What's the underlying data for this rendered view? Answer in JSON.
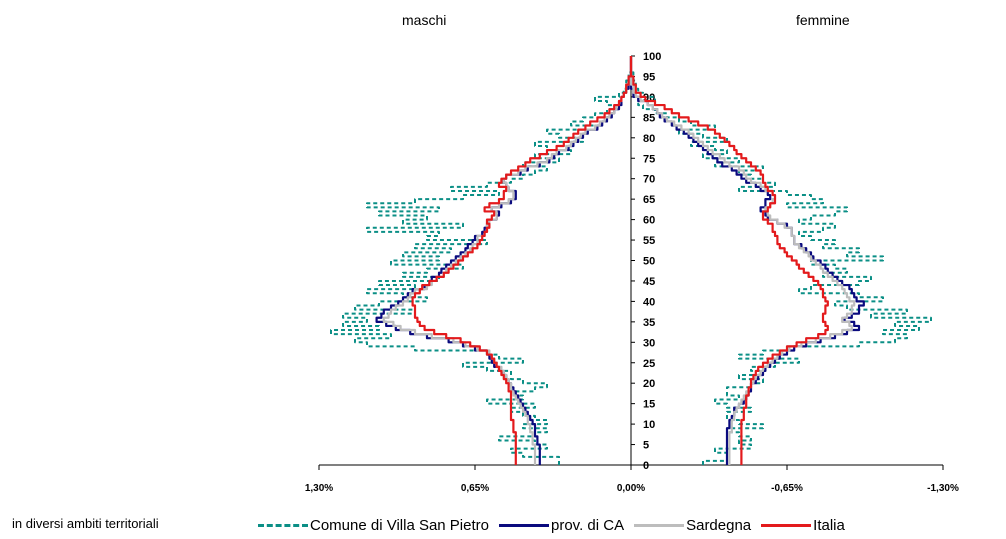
{
  "chart_data": {
    "type": "population-pyramid",
    "headers": {
      "left": "maschi",
      "right": "femmine"
    },
    "note": "in diversi ambiti territoriali",
    "y_ticks": [
      0,
      5,
      10,
      15,
      20,
      25,
      30,
      35,
      40,
      45,
      50,
      55,
      60,
      65,
      70,
      75,
      80,
      85,
      90,
      95,
      100
    ],
    "x_ticks": [
      {
        "value": -1.3,
        "label": "1,30%"
      },
      {
        "value": -0.65,
        "label": "0,65%"
      },
      {
        "value": 0.0,
        "label": "0,00%"
      },
      {
        "value": 0.65,
        "label": "-0,65%"
      },
      {
        "value": 1.3,
        "label": "-1,30%"
      }
    ],
    "xlim": [
      -1.3,
      1.3
    ],
    "ylim": [
      0,
      100
    ],
    "series": [
      {
        "name": "Comune di Villa San Pietro",
        "color": "#0b8f86",
        "style": "dashed",
        "male": [
          0.3,
          0.3,
          0.45,
          0.5,
          0.35,
          0.4,
          0.55,
          0.4,
          0.35,
          0.45,
          0.35,
          0.4,
          0.45,
          0.5,
          0.4,
          0.6,
          0.45,
          0.5,
          0.4,
          0.35,
          0.45,
          0.5,
          0.5,
          0.6,
          0.7,
          0.45,
          0.55,
          0.6,
          0.9,
          1.1,
          1.15,
          1.0,
          1.25,
          1.05,
          1.2,
          1.1,
          1.2,
          0.9,
          1.15,
          1.05,
          0.85,
          0.95,
          1.1,
          0.9,
          1.05,
          0.8,
          0.95,
          0.85,
          0.7,
          1.0,
          0.8,
          0.95,
          0.75,
          0.9,
          0.6,
          0.85,
          0.8,
          1.1,
          0.7,
          0.95,
          0.85,
          1.05,
          0.8,
          1.1,
          0.9,
          0.7,
          0.55,
          0.75,
          0.6,
          0.5,
          0.45,
          0.4,
          0.35,
          0.45,
          0.3,
          0.4,
          0.25,
          0.35,
          0.4,
          0.2,
          0.3,
          0.35,
          0.15,
          0.25,
          0.2,
          0.15,
          0.1,
          0.05,
          0.1,
          0.15,
          0.05,
          0.03,
          0.02,
          0.02,
          0.01,
          0.01,
          0.0,
          0.0,
          0.0,
          0.0,
          0.0
        ],
        "female": [
          0.3,
          0.4,
          0.4,
          0.35,
          0.5,
          0.45,
          0.5,
          0.45,
          0.4,
          0.55,
          0.45,
          0.4,
          0.4,
          0.5,
          0.4,
          0.35,
          0.45,
          0.4,
          0.4,
          0.5,
          0.55,
          0.45,
          0.55,
          0.5,
          0.6,
          0.7,
          0.45,
          0.55,
          0.65,
          0.95,
          1.1,
          1.15,
          1.05,
          1.2,
          1.1,
          1.25,
          1.0,
          1.15,
          0.9,
          0.85,
          1.05,
          0.95,
          0.7,
          0.75,
          0.95,
          1.0,
          0.8,
          0.9,
          0.85,
          0.75,
          1.05,
          0.9,
          0.95,
          0.8,
          0.85,
          0.75,
          0.7,
          0.8,
          0.85,
          0.7,
          0.75,
          0.85,
          0.9,
          0.65,
          0.8,
          0.75,
          0.65,
          0.45,
          0.6,
          0.55,
          0.5,
          0.45,
          0.55,
          0.35,
          0.45,
          0.3,
          0.4,
          0.35,
          0.25,
          0.4,
          0.3,
          0.2,
          0.35,
          0.25,
          0.2,
          0.15,
          0.1,
          0.05,
          0.03,
          0.1,
          0.05,
          0.03,
          0.02,
          0.02,
          0.01,
          0.01,
          0.0,
          0.0,
          0.0,
          0.0,
          0.0
        ]
      },
      {
        "name": "prov. di CA",
        "color": "#0a0a7e",
        "style": "solid",
        "male": [
          0.38,
          0.38,
          0.38,
          0.38,
          0.38,
          0.39,
          0.39,
          0.4,
          0.4,
          0.4,
          0.41,
          0.42,
          0.43,
          0.44,
          0.45,
          0.46,
          0.47,
          0.48,
          0.49,
          0.5,
          0.51,
          0.52,
          0.53,
          0.55,
          0.57,
          0.58,
          0.59,
          0.6,
          0.65,
          0.7,
          0.76,
          0.85,
          0.92,
          0.98,
          1.02,
          1.06,
          1.04,
          1.03,
          1.0,
          0.97,
          0.95,
          0.93,
          0.91,
          0.86,
          0.84,
          0.83,
          0.8,
          0.79,
          0.77,
          0.75,
          0.73,
          0.71,
          0.69,
          0.68,
          0.66,
          0.65,
          0.62,
          0.61,
          0.6,
          0.59,
          0.56,
          0.55,
          0.58,
          0.54,
          0.5,
          0.48,
          0.48,
          0.51,
          0.52,
          0.53,
          0.52,
          0.46,
          0.43,
          0.38,
          0.34,
          0.32,
          0.3,
          0.26,
          0.24,
          0.22,
          0.2,
          0.18,
          0.14,
          0.12,
          0.1,
          0.08,
          0.07,
          0.05,
          0.04,
          0.04,
          0.03,
          0.02,
          0.01,
          0.01,
          0.01,
          0.0,
          0.0,
          0.0,
          0.0,
          0.0,
          0.0
        ],
        "female": [
          0.4,
          0.4,
          0.4,
          0.4,
          0.4,
          0.4,
          0.4,
          0.4,
          0.4,
          0.41,
          0.41,
          0.42,
          0.43,
          0.43,
          0.45,
          0.47,
          0.48,
          0.49,
          0.5,
          0.5,
          0.52,
          0.53,
          0.55,
          0.56,
          0.58,
          0.6,
          0.62,
          0.65,
          0.68,
          0.73,
          0.79,
          0.85,
          0.9,
          0.95,
          0.93,
          0.89,
          0.92,
          0.95,
          0.95,
          0.97,
          0.94,
          0.93,
          0.92,
          0.91,
          0.88,
          0.86,
          0.84,
          0.82,
          0.81,
          0.79,
          0.76,
          0.75,
          0.73,
          0.71,
          0.68,
          0.68,
          0.67,
          0.67,
          0.65,
          0.61,
          0.57,
          0.56,
          0.54,
          0.56,
          0.56,
          0.58,
          0.57,
          0.54,
          0.52,
          0.48,
          0.46,
          0.44,
          0.42,
          0.38,
          0.36,
          0.34,
          0.32,
          0.3,
          0.28,
          0.26,
          0.24,
          0.22,
          0.19,
          0.17,
          0.14,
          0.12,
          0.11,
          0.09,
          0.07,
          0.03,
          0.01,
          0.01,
          0.0,
          0.0,
          0.0,
          0.0,
          0.0,
          0.0,
          0.0,
          0.0,
          0.0
        ]
      },
      {
        "name": "Sardegna",
        "color": "#bdbdbd",
        "style": "solid",
        "male": [
          0.4,
          0.4,
          0.4,
          0.4,
          0.4,
          0.41,
          0.41,
          0.41,
          0.42,
          0.42,
          0.43,
          0.43,
          0.44,
          0.45,
          0.46,
          0.47,
          0.48,
          0.49,
          0.5,
          0.5,
          0.51,
          0.52,
          0.53,
          0.54,
          0.56,
          0.57,
          0.58,
          0.59,
          0.64,
          0.69,
          0.74,
          0.83,
          0.9,
          0.96,
          0.99,
          1.03,
          1.01,
          1.0,
          0.98,
          0.95,
          0.93,
          0.92,
          0.9,
          0.85,
          0.83,
          0.81,
          0.78,
          0.77,
          0.75,
          0.73,
          0.71,
          0.69,
          0.67,
          0.66,
          0.64,
          0.64,
          0.61,
          0.6,
          0.6,
          0.59,
          0.56,
          0.56,
          0.58,
          0.55,
          0.51,
          0.49,
          0.49,
          0.51,
          0.52,
          0.53,
          0.52,
          0.47,
          0.44,
          0.39,
          0.35,
          0.33,
          0.31,
          0.27,
          0.25,
          0.23,
          0.21,
          0.19,
          0.15,
          0.13,
          0.11,
          0.09,
          0.07,
          0.06,
          0.05,
          0.04,
          0.03,
          0.02,
          0.02,
          0.01,
          0.01,
          0.0,
          0.0,
          0.0,
          0.0,
          0.0,
          0.0
        ],
        "female": [
          0.41,
          0.41,
          0.41,
          0.41,
          0.41,
          0.41,
          0.41,
          0.41,
          0.42,
          0.42,
          0.42,
          0.43,
          0.43,
          0.44,
          0.45,
          0.46,
          0.47,
          0.48,
          0.49,
          0.5,
          0.51,
          0.52,
          0.54,
          0.55,
          0.57,
          0.59,
          0.61,
          0.63,
          0.66,
          0.71,
          0.77,
          0.83,
          0.88,
          0.92,
          0.91,
          0.88,
          0.9,
          0.92,
          0.92,
          0.93,
          0.91,
          0.9,
          0.89,
          0.88,
          0.86,
          0.84,
          0.82,
          0.8,
          0.79,
          0.77,
          0.75,
          0.74,
          0.72,
          0.7,
          0.68,
          0.68,
          0.67,
          0.67,
          0.64,
          0.61,
          0.58,
          0.57,
          0.56,
          0.58,
          0.59,
          0.6,
          0.59,
          0.56,
          0.54,
          0.5,
          0.48,
          0.47,
          0.45,
          0.41,
          0.39,
          0.37,
          0.34,
          0.32,
          0.3,
          0.28,
          0.26,
          0.24,
          0.21,
          0.18,
          0.15,
          0.13,
          0.11,
          0.09,
          0.07,
          0.04,
          0.02,
          0.01,
          0.01,
          0.0,
          0.0,
          0.0,
          0.0,
          0.0,
          0.0,
          0.0,
          0.0
        ]
      },
      {
        "name": "Italia",
        "color": "#e31a1c",
        "style": "solid",
        "male": [
          0.48,
          0.48,
          0.48,
          0.48,
          0.48,
          0.48,
          0.48,
          0.48,
          0.49,
          0.49,
          0.49,
          0.5,
          0.5,
          0.5,
          0.5,
          0.5,
          0.5,
          0.5,
          0.51,
          0.51,
          0.52,
          0.53,
          0.54,
          0.55,
          0.56,
          0.57,
          0.58,
          0.6,
          0.63,
          0.67,
          0.71,
          0.77,
          0.82,
          0.86,
          0.88,
          0.89,
          0.9,
          0.9,
          0.9,
          0.91,
          0.91,
          0.9,
          0.88,
          0.87,
          0.84,
          0.81,
          0.78,
          0.76,
          0.74,
          0.72,
          0.7,
          0.68,
          0.66,
          0.64,
          0.63,
          0.62,
          0.61,
          0.6,
          0.59,
          0.6,
          0.58,
          0.57,
          0.61,
          0.59,
          0.55,
          0.53,
          0.53,
          0.52,
          0.55,
          0.54,
          0.52,
          0.5,
          0.47,
          0.44,
          0.42,
          0.38,
          0.35,
          0.31,
          0.28,
          0.26,
          0.24,
          0.22,
          0.19,
          0.17,
          0.14,
          0.11,
          0.09,
          0.07,
          0.05,
          0.04,
          0.03,
          0.02,
          0.02,
          0.01,
          0.01,
          0.0,
          0.0,
          0.0,
          0.0,
          0.0,
          0.0
        ],
        "female": [
          0.46,
          0.46,
          0.46,
          0.46,
          0.46,
          0.46,
          0.46,
          0.46,
          0.46,
          0.46,
          0.46,
          0.47,
          0.47,
          0.47,
          0.48,
          0.48,
          0.48,
          0.49,
          0.49,
          0.5,
          0.5,
          0.51,
          0.52,
          0.53,
          0.55,
          0.57,
          0.59,
          0.62,
          0.65,
          0.69,
          0.73,
          0.78,
          0.81,
          0.82,
          0.81,
          0.8,
          0.8,
          0.81,
          0.81,
          0.82,
          0.81,
          0.8,
          0.8,
          0.79,
          0.78,
          0.76,
          0.74,
          0.72,
          0.7,
          0.69,
          0.67,
          0.65,
          0.64,
          0.62,
          0.61,
          0.61,
          0.6,
          0.59,
          0.59,
          0.57,
          0.55,
          0.55,
          0.57,
          0.58,
          0.6,
          0.6,
          0.59,
          0.57,
          0.56,
          0.55,
          0.55,
          0.54,
          0.52,
          0.5,
          0.48,
          0.46,
          0.44,
          0.43,
          0.41,
          0.39,
          0.37,
          0.35,
          0.32,
          0.28,
          0.24,
          0.2,
          0.17,
          0.14,
          0.1,
          0.06,
          0.04,
          0.02,
          0.02,
          0.01,
          0.01,
          0.0,
          0.0,
          0.0,
          0.0,
          0.0,
          0.0
        ]
      }
    ]
  }
}
